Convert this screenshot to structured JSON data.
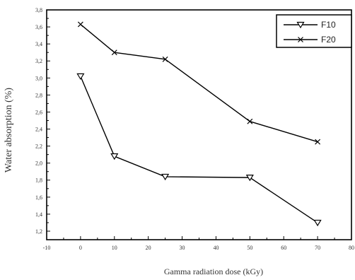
{
  "chart_data": {
    "type": "line",
    "xlabel": "Gamma radiation dose (kGy)",
    "ylabel": "Water absorption (%)",
    "xlim": [
      -10,
      80
    ],
    "ylim": [
      1.1,
      3.8
    ],
    "x_ticks": [
      -10,
      0,
      10,
      20,
      30,
      40,
      50,
      60,
      70,
      80
    ],
    "y_ticks": [
      1.2,
      1.4,
      1.6,
      1.8,
      2.0,
      2.2,
      2.4,
      2.6,
      2.8,
      3.0,
      3.2,
      3.4,
      3.6,
      3.8
    ],
    "x_tick_labels": [
      "-10",
      "0",
      "10",
      "20",
      "30",
      "40",
      "50",
      "60",
      "70",
      "80"
    ],
    "y_tick_labels": [
      "1,2",
      "1,4",
      "1,6",
      "1,8",
      "2,0",
      "2,2",
      "2,4",
      "2,6",
      "2,8",
      "3,0",
      "3,2",
      "3,4",
      "3,6",
      "3,8"
    ],
    "grid": false,
    "legend_position": "top-right",
    "series": [
      {
        "name": "F10",
        "marker": "triangle-down",
        "x": [
          0,
          10,
          25,
          50,
          70
        ],
        "y": [
          3.02,
          2.08,
          1.84,
          1.83,
          1.3
        ]
      },
      {
        "name": "F20",
        "marker": "x",
        "x": [
          0,
          10,
          25,
          50,
          70
        ],
        "y": [
          3.63,
          3.3,
          3.22,
          2.49,
          2.25
        ]
      }
    ]
  }
}
